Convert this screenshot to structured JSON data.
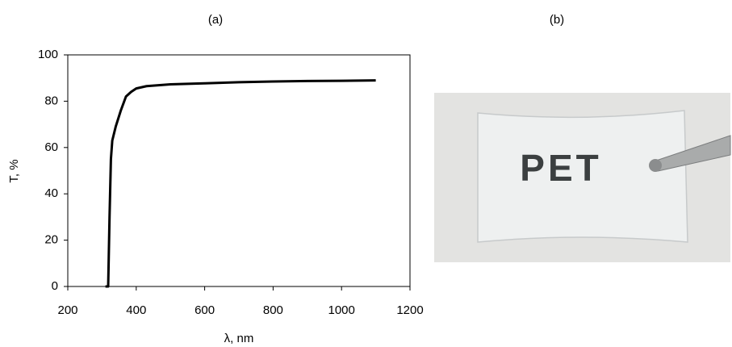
{
  "chart_data": {
    "type": "line",
    "panel_label": "(a)",
    "x_label": "λ, nm",
    "y_label": "T, %",
    "x": [
      310,
      318,
      322,
      326,
      330,
      340,
      355,
      370,
      385,
      400,
      430,
      500,
      600,
      700,
      800,
      900,
      1000,
      1100
    ],
    "values": [
      0,
      0,
      30,
      55,
      63,
      69,
      76,
      82,
      84,
      85.5,
      86.5,
      87.3,
      87.7,
      88.2,
      88.5,
      88.7,
      88.8,
      89
    ],
    "color": "#000000",
    "xlim": [
      200,
      1200
    ],
    "xticks": [
      200,
      400,
      600,
      800,
      1000,
      1200
    ],
    "ylim": [
      0,
      100
    ],
    "yticks": [
      0,
      20,
      40,
      60,
      80,
      100
    ]
  },
  "photo": {
    "panel_label": "(b)",
    "text": "PET"
  }
}
